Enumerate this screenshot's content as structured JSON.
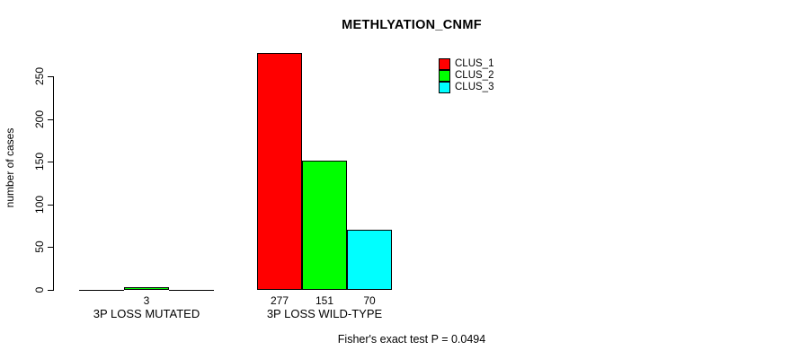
{
  "chart_data": {
    "type": "bar",
    "title": "METHLYATION_CNMF",
    "ylabel": "number of cases",
    "xlabel": "",
    "categories": [
      "3P LOSS MUTATED",
      "3P LOSS WILD-TYPE"
    ],
    "series": [
      {
        "name": "CLUS_1",
        "color": "#FF0000",
        "values": [
          0,
          277
        ]
      },
      {
        "name": "CLUS_2",
        "color": "#00FF00",
        "values": [
          3,
          151
        ]
      },
      {
        "name": "CLUS_3",
        "color": "#00FFFF",
        "values": [
          0,
          70
        ]
      }
    ],
    "bar_value_labels": [
      [
        "",
        "277"
      ],
      [
        "3",
        "151"
      ],
      [
        "",
        "70"
      ]
    ],
    "yticks": [
      0,
      50,
      100,
      150,
      200,
      250
    ],
    "ylim": [
      0,
      290
    ],
    "grid": false,
    "legend_position": "top-right",
    "annotation": "Fisher's exact test P = 0.0494",
    "bar_border_color": "#000000",
    "background_color": "#FFFFFF"
  }
}
